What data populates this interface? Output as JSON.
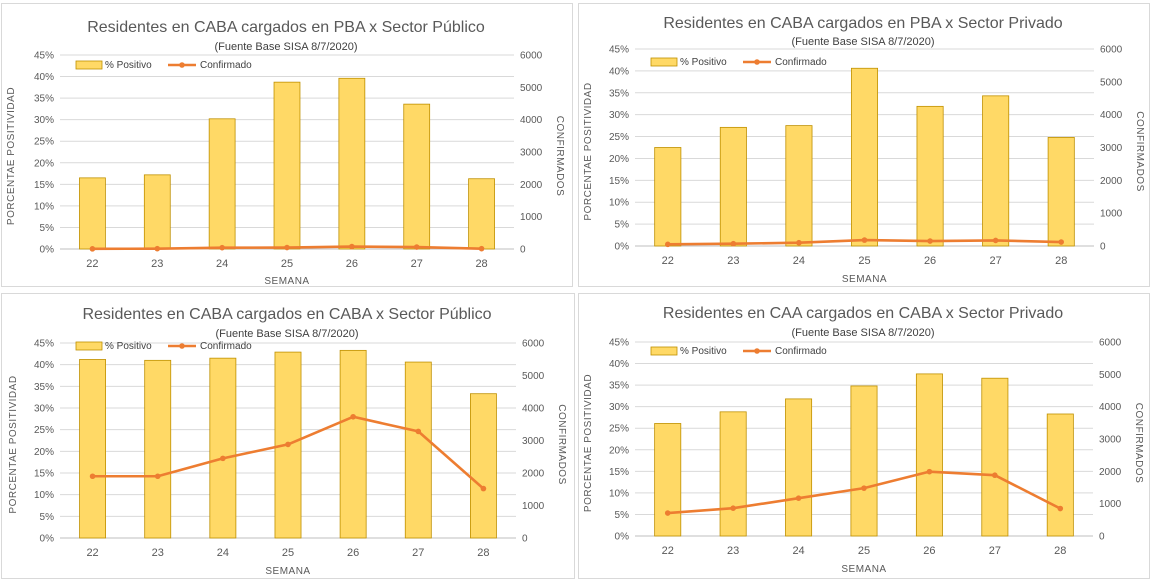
{
  "colors": {
    "bar_fill": "#ffd966",
    "bar_stroke": "#bf9000",
    "line": "#ed7d31",
    "grid": "#d9d9d9",
    "text": "#595959"
  },
  "chart_data": [
    {
      "type": "bar",
      "title": "Residentes en CABA cargados en PBA x Sector Público",
      "subtitle": "(Fuente  Base SISA 8/7/2020)",
      "xlabel": "SEMANA",
      "ylabel": "PORCENTAE  POSITIVIDAD",
      "y2label": "CONFIRMADOS",
      "categories": [
        "22",
        "23",
        "24",
        "25",
        "26",
        "27",
        "28"
      ],
      "ylim": [
        0,
        45
      ],
      "y_ticks": [
        "0%",
        "5%",
        "10%",
        "15%",
        "20%",
        "25%",
        "30%",
        "35%",
        "40%",
        "45%"
      ],
      "y2lim": [
        0,
        6000
      ],
      "y2_ticks": [
        "0",
        "1000",
        "2000",
        "3000",
        "4000",
        "5000",
        "6000"
      ],
      "legend_position": "top-left",
      "series": [
        {
          "name": "% Positivo",
          "type": "bar",
          "axis": "left",
          "values": [
            16.5,
            17.2,
            30.2,
            38.7,
            39.6,
            33.6,
            16.3
          ]
        },
        {
          "name": "Confirmado",
          "type": "line",
          "axis": "right",
          "values": [
            5,
            10,
            40,
            45,
            75,
            60,
            10
          ]
        }
      ]
    },
    {
      "type": "bar",
      "title": "Residentes en CABA cargados en PBA x Sector Privado",
      "subtitle": "(Fuente  Base SISA 8/7/2020)",
      "xlabel": "SEMANA",
      "ylabel": "PORCENTAE  POSITIVIDAD",
      "y2label": "CONFIRMADOS",
      "categories": [
        "22",
        "23",
        "24",
        "25",
        "26",
        "27",
        "28"
      ],
      "ylim": [
        0,
        45
      ],
      "y_ticks": [
        "0%",
        "5%",
        "10%",
        "15%",
        "20%",
        "25%",
        "30%",
        "35%",
        "40%",
        "45%"
      ],
      "y2lim": [
        0,
        6000
      ],
      "y2_ticks": [
        "0",
        "1000",
        "2000",
        "3000",
        "4000",
        "5000",
        "6000"
      ],
      "legend_position": "top-left",
      "series": [
        {
          "name": "% Positivo",
          "type": "bar",
          "axis": "left",
          "values": [
            22.5,
            27.1,
            27.5,
            40.6,
            31.9,
            34.3,
            24.8
          ]
        },
        {
          "name": "Confirmado",
          "type": "line",
          "axis": "right",
          "values": [
            50,
            70,
            100,
            180,
            150,
            170,
            120
          ]
        }
      ]
    },
    {
      "type": "bar",
      "title": "Residentes en CABA cargados en CABA x Sector Público",
      "subtitle": "(Fuente  Base SISA 8/7/2020)",
      "xlabel": "SEMANA",
      "ylabel": "PORCENTAE  POSITIVIDAD",
      "y2label": "CONFIRMADOS",
      "categories": [
        "22",
        "23",
        "24",
        "25",
        "26",
        "27",
        "28"
      ],
      "ylim": [
        0,
        45
      ],
      "y_ticks": [
        "0%",
        "5%",
        "10%",
        "15%",
        "20%",
        "25%",
        "30%",
        "35%",
        "40%",
        "45%"
      ],
      "y2lim": [
        0,
        6000
      ],
      "y2_ticks": [
        "0",
        "1000",
        "2000",
        "3000",
        "4000",
        "5000",
        "6000"
      ],
      "legend_position": "top-left",
      "series": [
        {
          "name": "% Positivo",
          "type": "bar",
          "axis": "left",
          "values": [
            41.2,
            41.0,
            41.5,
            42.9,
            43.3,
            40.6,
            33.3
          ]
        },
        {
          "name": "Confirmado",
          "type": "line",
          "axis": "right",
          "values": [
            1900,
            1900,
            2450,
            2880,
            3730,
            3280,
            1520
          ]
        }
      ]
    },
    {
      "type": "bar",
      "title": "Residentes en CAA cargados en CABA x Sector Privado",
      "subtitle": "(Fuente  Base SISA 8/7/2020)",
      "xlabel": "SEMANA",
      "ylabel": "PORCENTAE  POSITIVIDAD",
      "y2label": "CONFIRMADOS",
      "categories": [
        "22",
        "23",
        "24",
        "25",
        "26",
        "27",
        "28"
      ],
      "ylim": [
        0,
        45
      ],
      "y_ticks": [
        "0%",
        "5%",
        "10%",
        "15%",
        "20%",
        "25%",
        "30%",
        "35%",
        "40%",
        "45%"
      ],
      "y2lim": [
        0,
        6000
      ],
      "y2_ticks": [
        "0",
        "1000",
        "2000",
        "3000",
        "4000",
        "5000",
        "6000"
      ],
      "legend_position": "top-left",
      "series": [
        {
          "name": "% Positivo",
          "type": "bar",
          "axis": "left",
          "values": [
            26.1,
            28.8,
            31.8,
            34.8,
            37.6,
            36.6,
            28.3
          ]
        },
        {
          "name": "Confirmado",
          "type": "line",
          "axis": "right",
          "values": [
            710,
            860,
            1170,
            1480,
            1990,
            1880,
            850
          ]
        }
      ]
    }
  ]
}
